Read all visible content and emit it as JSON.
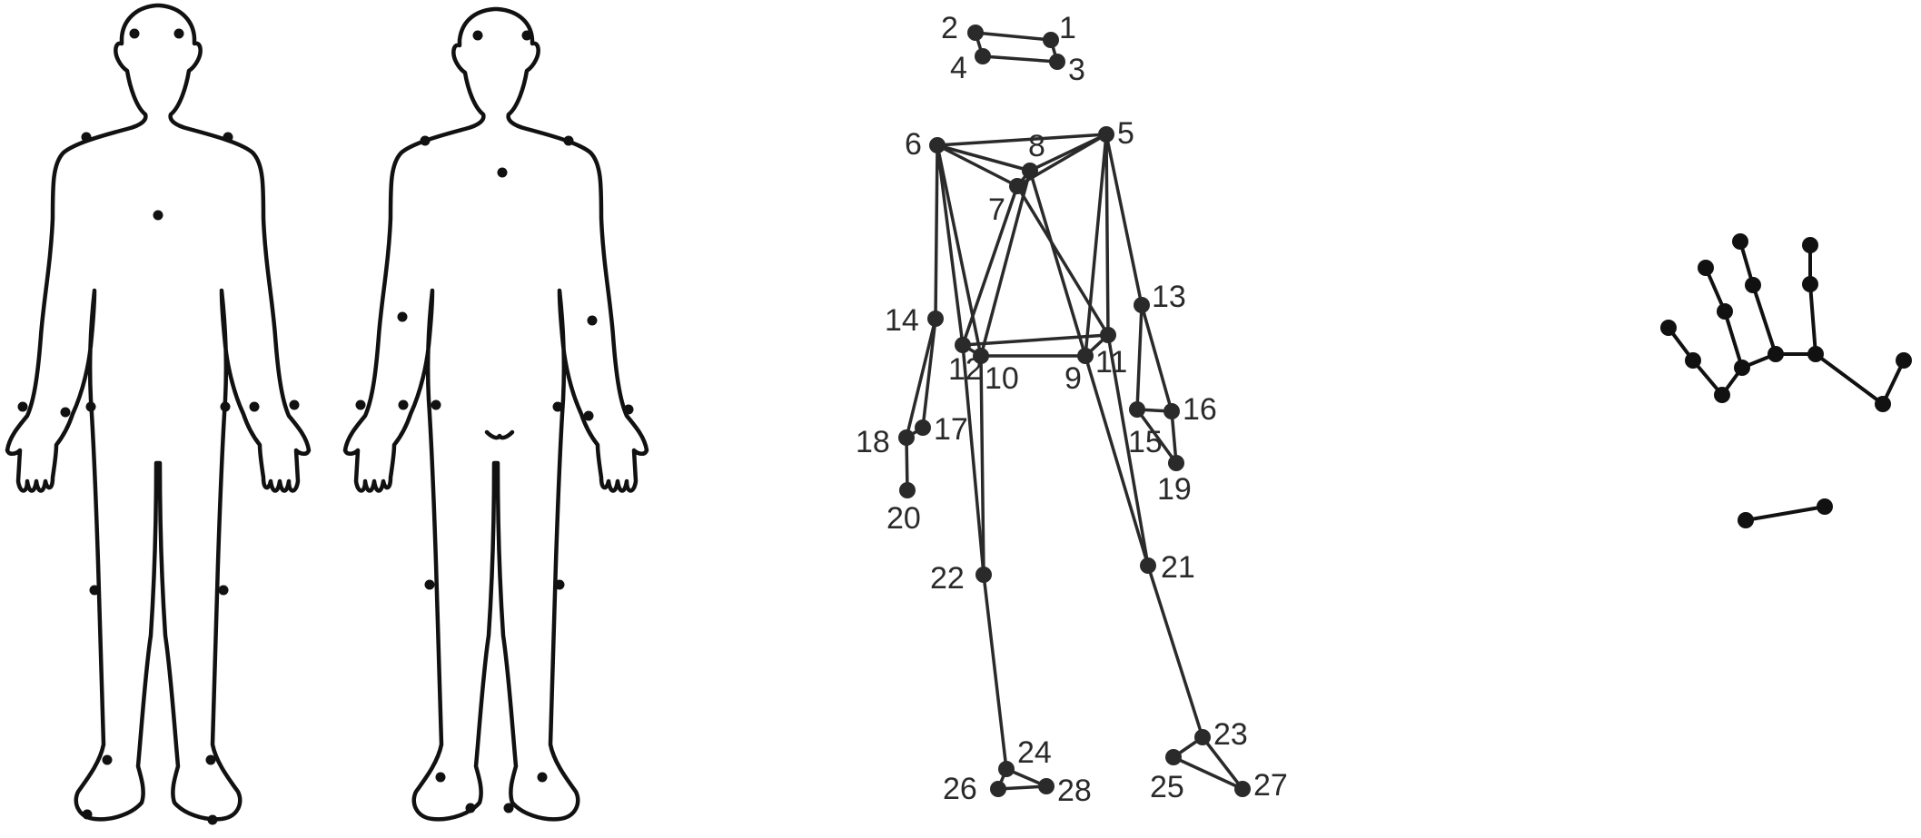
{
  "colors": {
    "ink": "#111111",
    "skeleton": "#2a2a2a",
    "background": "#ffffff"
  },
  "panels": {
    "body_front": {
      "kind": "human-outline-front",
      "markers": 19
    },
    "body_back": {
      "kind": "human-outline-back",
      "markers": 19
    },
    "skeleton": {
      "kind": "numbered-marker-skeleton"
    },
    "hand": {
      "kind": "hand-keypoint-skeleton"
    }
  },
  "skeleton": {
    "joints": [
      {
        "id": 1,
        "label": "1"
      },
      {
        "id": 2,
        "label": "2"
      },
      {
        "id": 3,
        "label": "3"
      },
      {
        "id": 4,
        "label": "4"
      },
      {
        "id": 5,
        "label": "5"
      },
      {
        "id": 6,
        "label": "6"
      },
      {
        "id": 7,
        "label": "7"
      },
      {
        "id": 8,
        "label": "8"
      },
      {
        "id": 9,
        "label": "9"
      },
      {
        "id": 10,
        "label": "10"
      },
      {
        "id": 11,
        "label": "11"
      },
      {
        "id": 12,
        "label": "12"
      },
      {
        "id": 13,
        "label": "13"
      },
      {
        "id": 14,
        "label": "14"
      },
      {
        "id": 15,
        "label": "15"
      },
      {
        "id": 16,
        "label": "16"
      },
      {
        "id": 17,
        "label": "17"
      },
      {
        "id": 18,
        "label": "18"
      },
      {
        "id": 19,
        "label": "19"
      },
      {
        "id": 20,
        "label": "20"
      },
      {
        "id": 21,
        "label": "21"
      },
      {
        "id": 22,
        "label": "22"
      },
      {
        "id": 23,
        "label": "23"
      },
      {
        "id": 24,
        "label": "24"
      },
      {
        "id": 25,
        "label": "25"
      },
      {
        "id": 26,
        "label": "26"
      },
      {
        "id": 27,
        "label": "27"
      },
      {
        "id": 28,
        "label": "28"
      }
    ],
    "edges": [
      [
        2,
        1
      ],
      [
        1,
        3
      ],
      [
        3,
        4
      ],
      [
        4,
        2
      ],
      [
        6,
        5
      ],
      [
        6,
        8
      ],
      [
        6,
        7
      ],
      [
        8,
        5
      ],
      [
        7,
        5
      ],
      [
        7,
        8
      ],
      [
        6,
        12
      ],
      [
        6,
        10
      ],
      [
        6,
        14
      ],
      [
        8,
        10
      ],
      [
        8,
        9
      ],
      [
        7,
        12
      ],
      [
        7,
        11
      ],
      [
        5,
        9
      ],
      [
        5,
        11
      ],
      [
        5,
        13
      ],
      [
        12,
        11
      ],
      [
        10,
        9
      ],
      [
        12,
        10
      ],
      [
        9,
        11
      ],
      [
        14,
        17
      ],
      [
        14,
        18
      ],
      [
        18,
        17
      ],
      [
        18,
        20
      ],
      [
        13,
        15
      ],
      [
        13,
        16
      ],
      [
        15,
        16
      ],
      [
        15,
        19
      ],
      [
        16,
        19
      ],
      [
        12,
        22
      ],
      [
        10,
        22
      ],
      [
        9,
        21
      ],
      [
        11,
        21
      ],
      [
        22,
        24
      ],
      [
        24,
        26
      ],
      [
        24,
        28
      ],
      [
        26,
        28
      ],
      [
        21,
        23
      ],
      [
        23,
        25
      ],
      [
        23,
        27
      ],
      [
        25,
        27
      ]
    ]
  },
  "hand": {
    "keypoints": 15,
    "edges": [
      [
        0,
        1
      ],
      [
        1,
        2
      ],
      [
        0,
        3
      ],
      [
        3,
        4
      ],
      [
        4,
        5
      ],
      [
        0,
        6
      ],
      [
        6,
        7
      ],
      [
        7,
        8
      ],
      [
        0,
        9
      ],
      [
        9,
        10
      ],
      [
        10,
        11
      ],
      [
        9,
        12
      ],
      [
        12,
        13
      ],
      [
        13,
        14
      ]
    ],
    "extra_segment": true
  }
}
